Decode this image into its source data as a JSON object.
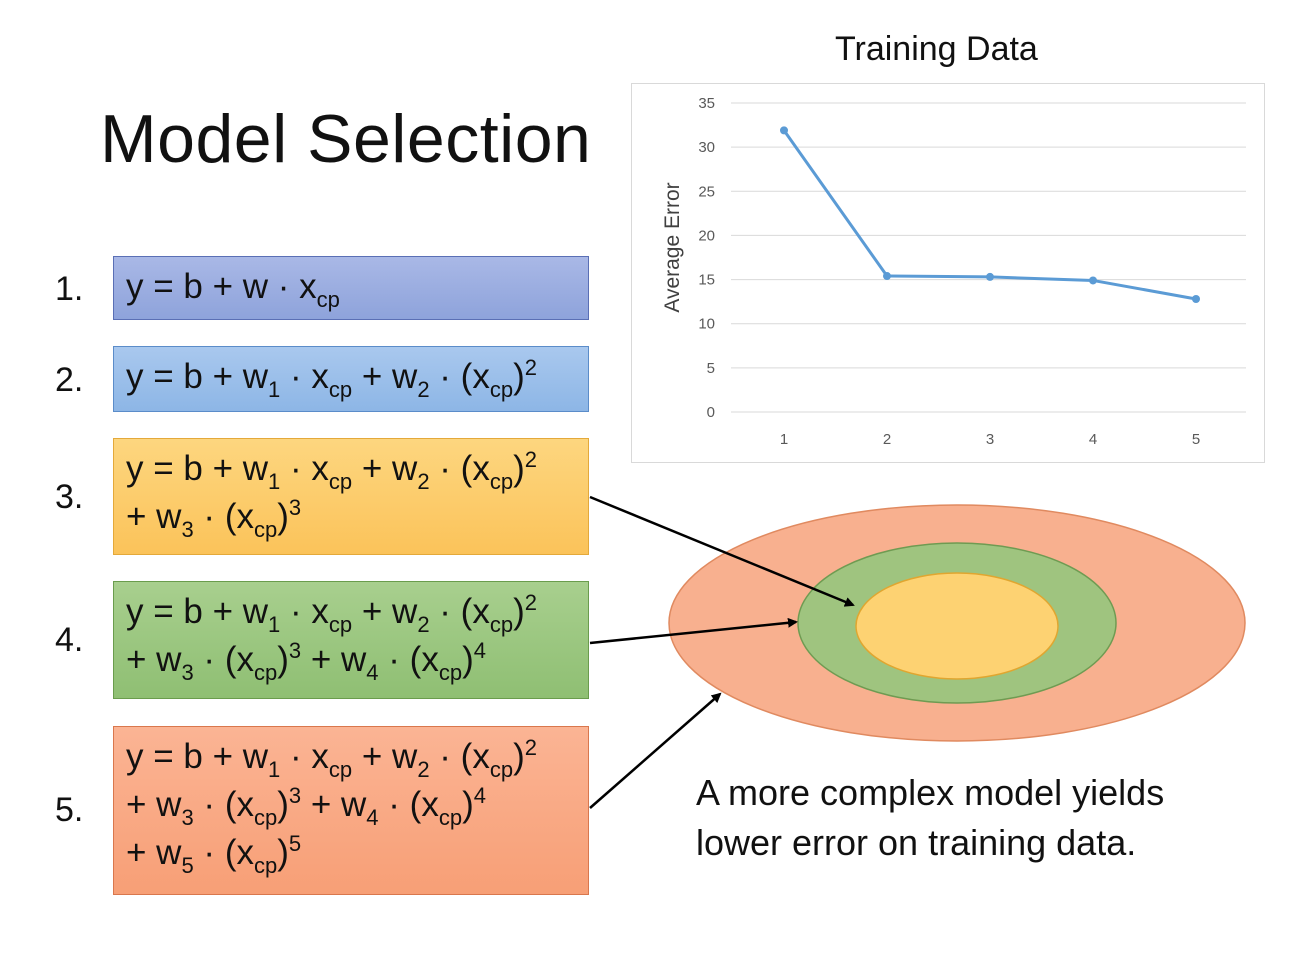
{
  "slide": {
    "title": "Model Selection",
    "caption_line1": "A more complex model yields",
    "caption_line2": "lower error on training data."
  },
  "models": [
    {
      "number": "1.",
      "color": "#9fb0e0"
    },
    {
      "number": "2.",
      "color": "#a0c1ec"
    },
    {
      "number": "3.",
      "color": "#fccd6c"
    },
    {
      "number": "4.",
      "color": "#9cc780"
    },
    {
      "number": "5.",
      "color": "#f9aa85"
    }
  ],
  "formula_tokens": {
    "y": "y",
    "eq": " = ",
    "b": "b",
    "plus": " + ",
    "w": "w",
    "dot": " · ",
    "x": "x",
    "cp": "cp",
    "lp": "(",
    "rp": ")",
    "s1": "1",
    "s2": "2",
    "s3": "3",
    "s4": "4",
    "s5": "5"
  },
  "chart_data": {
    "type": "line",
    "title": "Training Data",
    "xlabel": "",
    "ylabel": "Average Error",
    "x": [
      1,
      2,
      3,
      4,
      5
    ],
    "series": [
      {
        "values": [
          31.9,
          15.4,
          15.3,
          14.9,
          12.8
        ],
        "color": "#5b9bd5"
      }
    ],
    "ylim": [
      0,
      35
    ],
    "yticks": [
      0,
      5,
      10,
      15,
      20,
      25,
      30,
      35
    ],
    "grid": true
  },
  "ellipses": {
    "outer_color": "#f8b08f",
    "middle_color": "#9fc47f",
    "inner_color": "#fdd272"
  }
}
